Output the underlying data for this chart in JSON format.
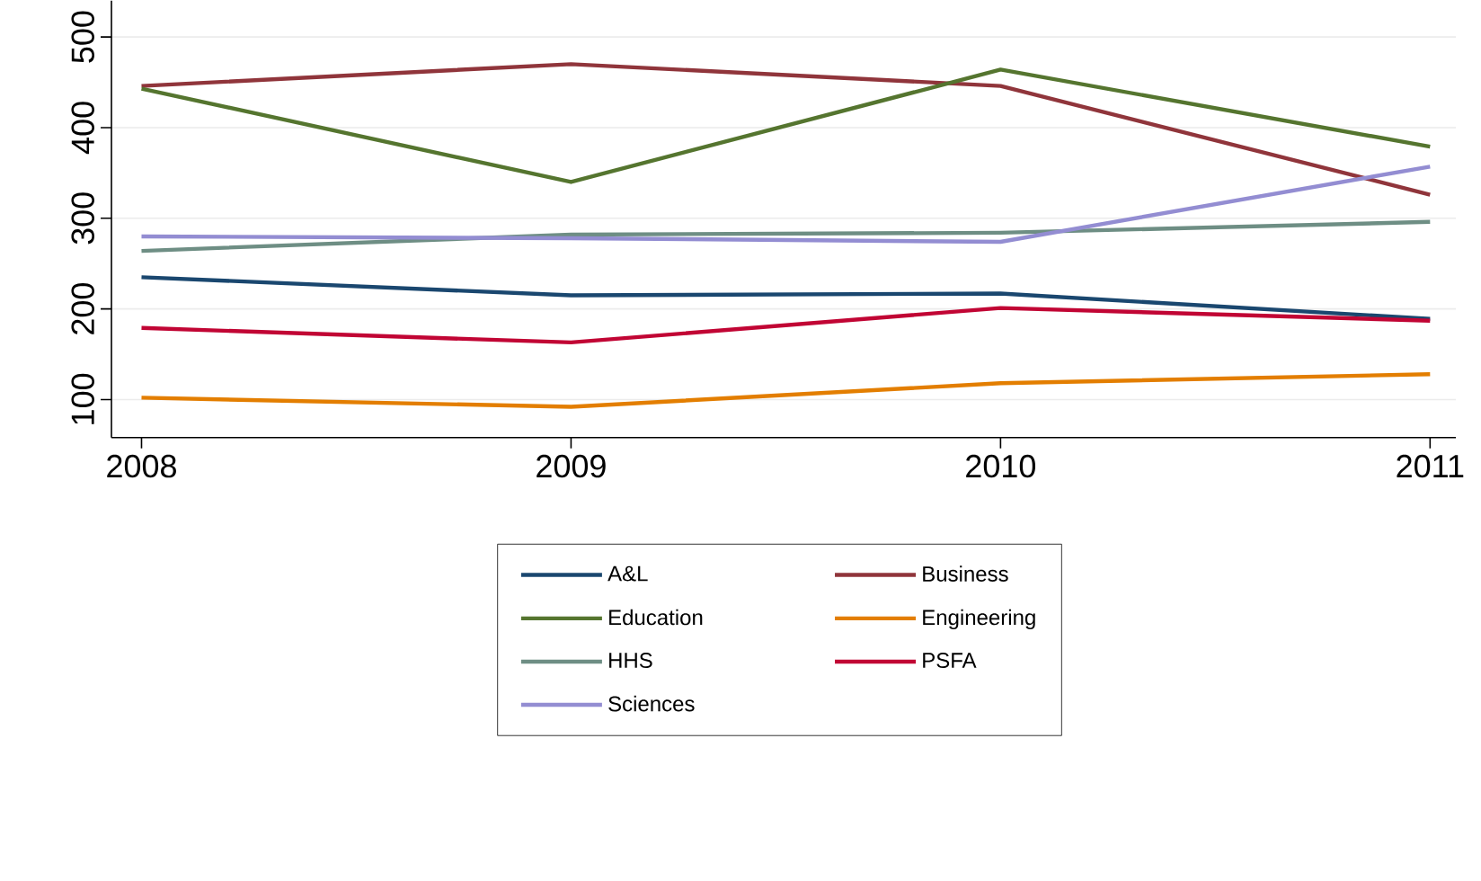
{
  "chart_data": {
    "type": "line",
    "x": [
      2008,
      2009,
      2010,
      2011
    ],
    "xlim": [
      2007.93,
      2011.06
    ],
    "ylim": [
      58,
      540
    ],
    "xticks": [
      2008,
      2009,
      2010,
      2011
    ],
    "yticks": [
      100,
      200,
      300,
      400,
      500
    ],
    "grid": "y",
    "legend": "bottom",
    "marker": "none",
    "line_style": "solid",
    "series": [
      {
        "name": "A&L",
        "color": "#1a476f",
        "values": [
          235,
          215,
          217,
          189
        ]
      },
      {
        "name": "Business",
        "color": "#90353b",
        "values": [
          446,
          470,
          446,
          326
        ]
      },
      {
        "name": "Education",
        "color": "#55752f",
        "values": [
          443,
          340,
          464,
          379
        ]
      },
      {
        "name": "Engineering",
        "color": "#e37e00",
        "values": [
          102,
          92,
          118,
          128
        ]
      },
      {
        "name": "HHS",
        "color": "#6e8e84",
        "values": [
          264,
          282,
          284,
          296
        ]
      },
      {
        "name": "PSFA",
        "color": "#c10534",
        "values": [
          179,
          163,
          201,
          187
        ]
      },
      {
        "name": "Sciences",
        "color": "#938dd2",
        "values": [
          280,
          278,
          274,
          357
        ]
      }
    ]
  }
}
